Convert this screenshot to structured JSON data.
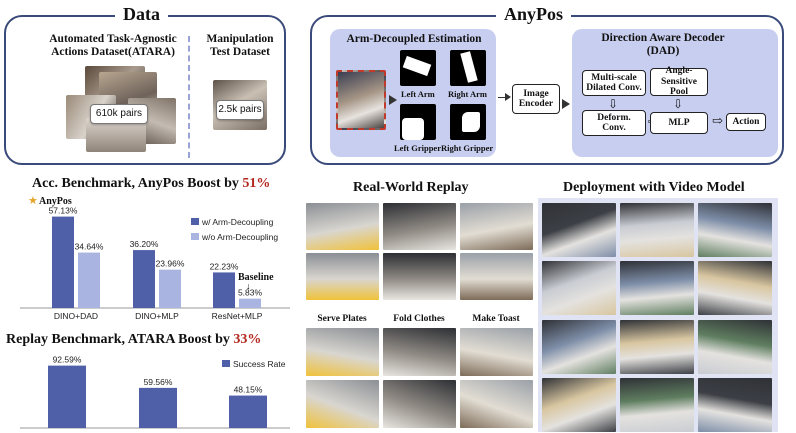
{
  "data_panel": {
    "title": "Data",
    "atara_title_line1": "Automated Task-Agnostic",
    "atara_title_line2": "Actions Dataset(ATARA)",
    "atara_count": "610k pairs",
    "manip_title_line1": "Manipulation",
    "manip_title_line2": "Test Dataset",
    "manip_count": "2.5k pairs"
  },
  "anypos_panel": {
    "title": "AnyPos",
    "arm_decoupled_title": "Arm-Decoupled Estimation",
    "left_arm": "Left Arm",
    "right_arm": "Right Arm",
    "left_gripper": "Left Gripper",
    "right_gripper": "Right Gripper",
    "image_encoder_line1": "Image",
    "image_encoder_line2": "Encoder",
    "dad_title_line1": "Direction Aware Decoder",
    "dad_title_line2": "(DAD)",
    "multi_scale_line1": "Multi-scale",
    "multi_scale_line2": "Dilated Conv.",
    "angle_sensitive_line1": "Angle-Sensitive",
    "angle_sensitive_line2": "Pool",
    "deform_line1": "Deform.",
    "deform_line2": "Conv.",
    "mlp": "MLP",
    "action": "Action"
  },
  "acc_benchmark": {
    "title_prefix": "Acc. Benchmark, AnyPos Boost by ",
    "title_highlight": "51%",
    "anypos_label": "AnyPos",
    "baseline_label": "Baseline"
  },
  "replay_benchmark": {
    "title_prefix": "Replay Benchmark, ATARA Boost by ",
    "title_highlight": "33%"
  },
  "real_world": {
    "title": "Real-World Replay",
    "tasks": [
      "Serve Plates",
      "Fold Clothes",
      "Make Toast"
    ]
  },
  "deployment": {
    "title": "Deployment with Video Model"
  },
  "chart_data": [
    {
      "type": "bar",
      "categories": [
        "DINO+DAD",
        "DINO+MLP",
        "ResNet+MLP"
      ],
      "series": [
        {
          "name": "w/ Arm-Decoupling",
          "values": [
            57.13,
            36.2,
            22.23
          ],
          "labels": [
            "57.13%",
            "36.20%",
            "22.23%"
          ]
        },
        {
          "name": "w/o Arm-Decoupling",
          "values": [
            34.64,
            23.96,
            5.83
          ],
          "labels": [
            "34.64%",
            "23.96%",
            "5.83%"
          ]
        }
      ],
      "ylim": [
        0,
        60
      ],
      "legend": "top-right",
      "colors": [
        "#4f5fa8",
        "#a9b4e0"
      ]
    },
    {
      "type": "bar",
      "categories": [
        "",
        "",
        ""
      ],
      "series": [
        {
          "name": "Success Rate",
          "values": [
            92.59,
            59.56,
            48.15
          ],
          "labels": [
            "92.59%",
            "59.56%",
            "48.15%"
          ]
        }
      ],
      "ylim": [
        0,
        95
      ],
      "legend": "top-right",
      "colors": [
        "#4f5fa8"
      ]
    }
  ]
}
